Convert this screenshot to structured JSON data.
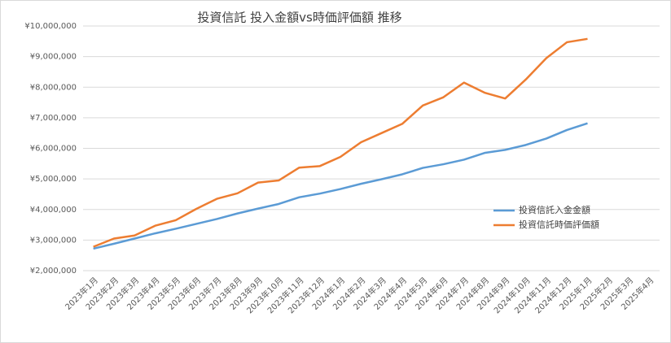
{
  "chart_data": {
    "type": "line",
    "title": "投資信託 投入金額vs時価評価額 推移",
    "categories": [
      "2023年1月",
      "2023年2月",
      "2023年3月",
      "2023年4月",
      "2023年5月",
      "2023年6月",
      "2023年7月",
      "2023年8月",
      "2023年9月",
      "2023年10月",
      "2023年11月",
      "2023年12月",
      "2024年1月",
      "2024年2月",
      "2024年3月",
      "2024年4月",
      "2024年5月",
      "2024年6月",
      "2024年7月",
      "2024年8月",
      "2024年9月",
      "2024年10月",
      "2024年11月",
      "2024年12月",
      "2025年1月",
      "2025年2月",
      "2025年3月",
      "2025年4月"
    ],
    "series": [
      {
        "name": "投資信託入金金額",
        "color": "#5b9bd5",
        "values": [
          2720000,
          2880000,
          3050000,
          3220000,
          3370000,
          3530000,
          3690000,
          3870000,
          4030000,
          4180000,
          4400000,
          4520000,
          4670000,
          4840000,
          4990000,
          5150000,
          5360000,
          5480000,
          5630000,
          5850000,
          5950000,
          6110000,
          6320000,
          6600000,
          6820000,
          null,
          null,
          null
        ]
      },
      {
        "name": "投資信託時価評価額",
        "color": "#ed7d31",
        "values": [
          2780000,
          3050000,
          3150000,
          3470000,
          3650000,
          4020000,
          4350000,
          4530000,
          4880000,
          4950000,
          5370000,
          5420000,
          5720000,
          6200000,
          6500000,
          6800000,
          7400000,
          7670000,
          8150000,
          7820000,
          7630000,
          8250000,
          8950000,
          9470000,
          9580000,
          null,
          null,
          null
        ]
      }
    ],
    "ylim": [
      2000000,
      10000000
    ],
    "yticks": [
      {
        "value": 2000000,
        "label": "¥2,000,000"
      },
      {
        "value": 3000000,
        "label": "¥3,000,000"
      },
      {
        "value": 4000000,
        "label": "¥4,000,000"
      },
      {
        "value": 5000000,
        "label": "¥5,000,000"
      },
      {
        "value": 6000000,
        "label": "¥6,000,000"
      },
      {
        "value": 7000000,
        "label": "¥7,000,000"
      },
      {
        "value": 8000000,
        "label": "¥8,000,000"
      },
      {
        "value": 9000000,
        "label": "¥9,000,000"
      },
      {
        "value": 10000000,
        "label": "¥10,000,000"
      }
    ],
    "grid": true,
    "legend": "right"
  }
}
